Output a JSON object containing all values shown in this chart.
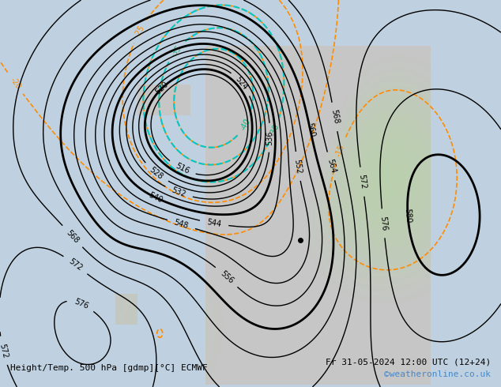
{
  "title_left": "Height/Temp. 500 hPa [gdmp][°C] ECMWF",
  "title_right": "Fr 31-05-2024 12:00 UTC (12+24)",
  "watermark": "©weatheronline.co.uk",
  "background_ocean": "#c8d8e8",
  "background_land_cold": "#d0d0d0",
  "background_land_warm": "#c8e8c0",
  "z500_contour_color": "#000000",
  "z500_contour_thick_color": "#000000",
  "temp_warm_color": "#90c878",
  "temp_cold_color_cyan": "#00c8c8",
  "temp_contour_orange": "#ff8c00",
  "temp_contour_green": "#30b030",
  "bottom_bar_color": "#c8c8c8",
  "bottom_text_color": "#000000",
  "watermark_color": "#4488cc"
}
